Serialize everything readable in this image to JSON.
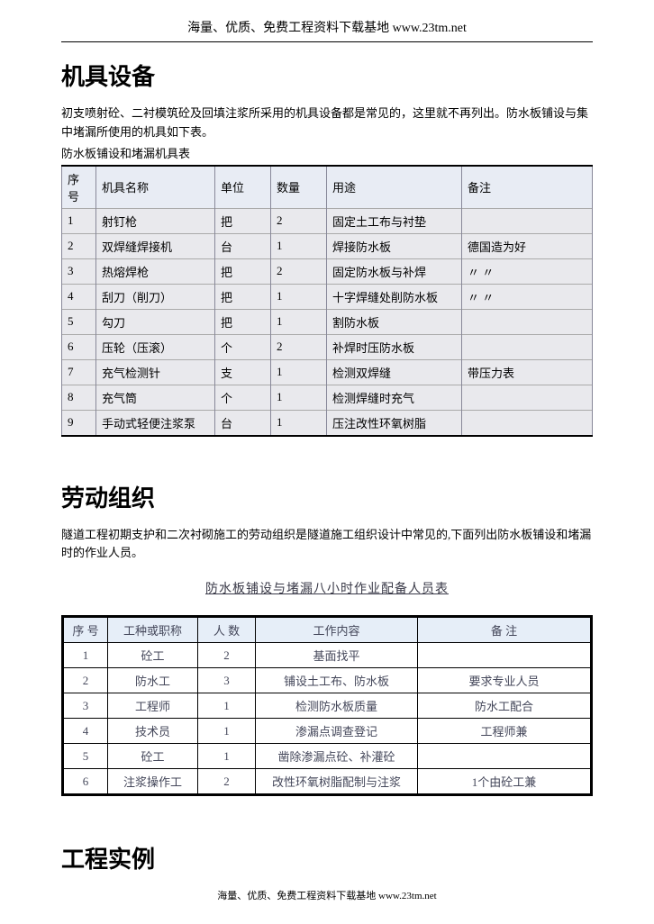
{
  "header": "海量、优质、免费工程资料下载基地 www.23tm.net",
  "section1": {
    "heading": "机具设备",
    "para": "初支喷射砼、二衬模筑砼及回填注浆所采用的机具设备都是常见的，这里就不再列出。防水板铺设与集中堵漏所使用的机具如下表。",
    "caption": "防水板铺设和堵漏机具表",
    "table": {
      "headers": [
        "序号",
        "机具名称",
        "单位",
        "数量",
        "用途",
        "备注"
      ],
      "rows": [
        [
          "1",
          "射钉枪",
          "把",
          "2",
          "固定土工布与衬垫",
          ""
        ],
        [
          "2",
          "双焊缝焊接机",
          "台",
          "1",
          "焊接防水板",
          "德国造为好"
        ],
        [
          "3",
          "热熔焊枪",
          "把",
          "2",
          "固定防水板与补焊",
          "〃   〃"
        ],
        [
          "4",
          "刮刀（削刀）",
          "把",
          "1",
          "十字焊缝处削防水板",
          "〃   〃"
        ],
        [
          "5",
          "勾刀",
          "把",
          "1",
          "割防水板",
          ""
        ],
        [
          "6",
          "压轮（压滚）",
          "个",
          "2",
          "补焊时压防水板",
          ""
        ],
        [
          "7",
          "充气检测针",
          "支",
          "1",
          "检测双焊缝",
          "带压力表"
        ],
        [
          "8",
          "充气筒",
          "个",
          "1",
          "检测焊缝时充气",
          ""
        ],
        [
          "9",
          "手动式轻便注浆泵",
          "台",
          "1",
          "压注改性环氧树脂",
          ""
        ]
      ]
    }
  },
  "section2": {
    "heading": "劳动组织",
    "para": "隧道工程初期支护和二次衬砌施工的劳动组织是隧道施工组织设计中常见的,下面列出防水板铺设和堵漏时的作业人员。",
    "table_title": "防水板铺设与堵漏八小时作业配备人员表",
    "table": {
      "headers": [
        "序 号",
        "工种或职称",
        "人 数",
        "工作内容",
        "备  注"
      ],
      "rows": [
        [
          "1",
          "砼工",
          "2",
          "基面找平",
          ""
        ],
        [
          "2",
          "防水工",
          "3",
          "铺设土工布、防水板",
          "要求专业人员"
        ],
        [
          "3",
          "工程师",
          "1",
          "检测防水板质量",
          "防水工配合"
        ],
        [
          "4",
          "技术员",
          "1",
          "渗漏点调查登记",
          "工程师兼"
        ],
        [
          "5",
          "砼工",
          "1",
          "凿除渗漏点砼、补灌砼",
          ""
        ],
        [
          "6",
          "注浆操作工",
          "2",
          "改性环氧树脂配制与注浆",
          "1个由砼工兼"
        ]
      ]
    }
  },
  "section3": {
    "heading": "工程实例"
  },
  "footer": "海量、优质、免费工程资料下载基地 www.23tm.net",
  "styling": {
    "page_bg": "#ffffff",
    "text_color": "#000000",
    "heading_fontsize": 26,
    "body_fontsize": 13,
    "table1_header_bg": "#e8ecf4",
    "table1_body_bg": "#e9e9ed",
    "table1_border_color": "#889",
    "table2_header_bg": "#e6eef8",
    "table2_border_color": "#000000",
    "table2_text_color": "#44475a"
  }
}
